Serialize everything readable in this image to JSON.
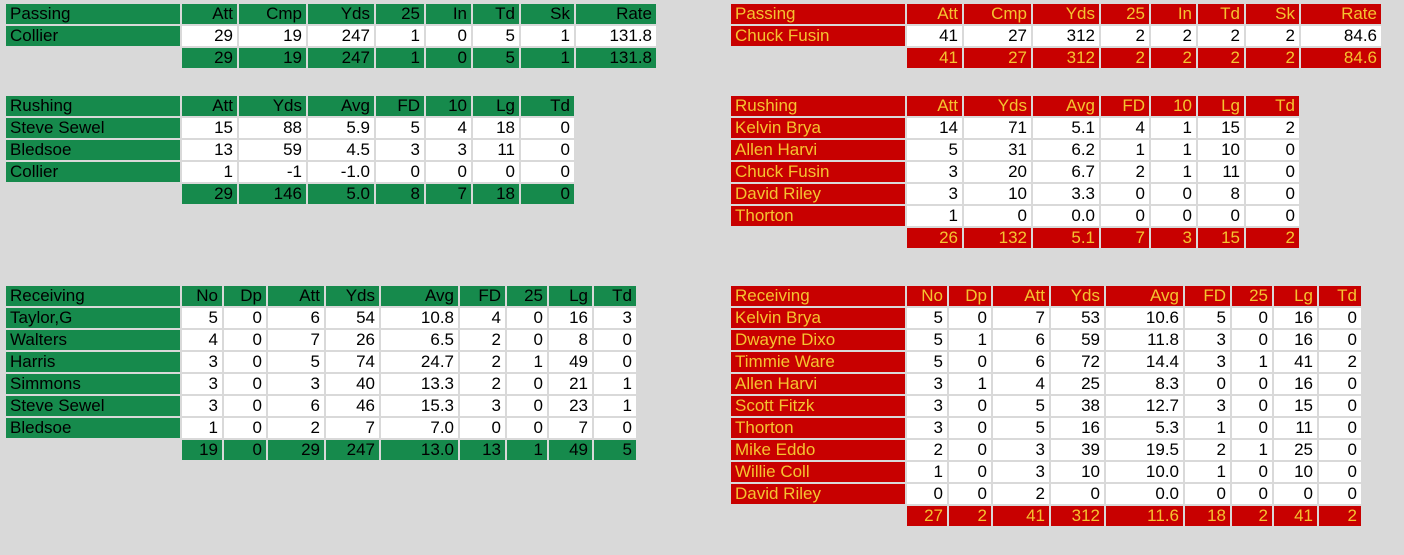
{
  "home": {
    "passing": {
      "title": "Passing",
      "cols": [
        "Att",
        "Cmp",
        "Yds",
        "25",
        "In",
        "Td",
        "Sk",
        "Rate"
      ],
      "rows": [
        {
          "name": "Collier",
          "vals": [
            "29",
            "19",
            "247",
            "1",
            "0",
            "5",
            "1",
            "131.8"
          ]
        }
      ],
      "total": [
        "29",
        "19",
        "247",
        "1",
        "0",
        "5",
        "1",
        "131.8"
      ]
    },
    "rushing": {
      "title": "Rushing",
      "cols": [
        "Att",
        "Yds",
        "Avg",
        "FD",
        "10",
        "Lg",
        "Td"
      ],
      "rows": [
        {
          "name": "Steve Sewel",
          "vals": [
            "15",
            "88",
            "5.9",
            "5",
            "4",
            "18",
            "0"
          ]
        },
        {
          "name": "Bledsoe",
          "vals": [
            "13",
            "59",
            "4.5",
            "3",
            "3",
            "11",
            "0"
          ]
        },
        {
          "name": "Collier",
          "vals": [
            "1",
            "-1",
            "-1.0",
            "0",
            "0",
            "0",
            "0"
          ]
        }
      ],
      "total": [
        "29",
        "146",
        "5.0",
        "8",
        "7",
        "18",
        "0"
      ]
    },
    "receiving": {
      "title": "Receiving",
      "cols": [
        "No",
        "Dp",
        "Att",
        "Yds",
        "Avg",
        "FD",
        "25",
        "Lg",
        "Td"
      ],
      "rows": [
        {
          "name": "Taylor,G",
          "vals": [
            "5",
            "0",
            "6",
            "54",
            "10.8",
            "4",
            "0",
            "16",
            "3"
          ]
        },
        {
          "name": "Walters",
          "vals": [
            "4",
            "0",
            "7",
            "26",
            "6.5",
            "2",
            "0",
            "8",
            "0"
          ]
        },
        {
          "name": "Harris",
          "vals": [
            "3",
            "0",
            "5",
            "74",
            "24.7",
            "2",
            "1",
            "49",
            "0"
          ]
        },
        {
          "name": "Simmons",
          "vals": [
            "3",
            "0",
            "3",
            "40",
            "13.3",
            "2",
            "0",
            "21",
            "1"
          ]
        },
        {
          "name": "Steve Sewel",
          "vals": [
            "3",
            "0",
            "6",
            "46",
            "15.3",
            "3",
            "0",
            "23",
            "1"
          ]
        },
        {
          "name": "Bledsoe",
          "vals": [
            "1",
            "0",
            "2",
            "7",
            "7.0",
            "0",
            "0",
            "7",
            "0"
          ]
        }
      ],
      "total": [
        "19",
        "0",
        "29",
        "247",
        "13.0",
        "13",
        "1",
        "49",
        "5"
      ]
    }
  },
  "away": {
    "passing": {
      "title": "Passing",
      "cols": [
        "Att",
        "Cmp",
        "Yds",
        "25",
        "In",
        "Td",
        "Sk",
        "Rate"
      ],
      "rows": [
        {
          "name": "Chuck Fusin",
          "vals": [
            "41",
            "27",
            "312",
            "2",
            "2",
            "2",
            "2",
            "84.6"
          ]
        }
      ],
      "total": [
        "41",
        "27",
        "312",
        "2",
        "2",
        "2",
        "2",
        "84.6"
      ]
    },
    "rushing": {
      "title": "Rushing",
      "cols": [
        "Att",
        "Yds",
        "Avg",
        "FD",
        "10",
        "Lg",
        "Td"
      ],
      "rows": [
        {
          "name": "Kelvin Brya",
          "vals": [
            "14",
            "71",
            "5.1",
            "4",
            "1",
            "15",
            "2"
          ]
        },
        {
          "name": "Allen Harvi",
          "vals": [
            "5",
            "31",
            "6.2",
            "1",
            "1",
            "10",
            "0"
          ]
        },
        {
          "name": "Chuck Fusin",
          "vals": [
            "3",
            "20",
            "6.7",
            "2",
            "1",
            "11",
            "0"
          ]
        },
        {
          "name": "David Riley",
          "vals": [
            "3",
            "10",
            "3.3",
            "0",
            "0",
            "8",
            "0"
          ]
        },
        {
          "name": "Thorton",
          "vals": [
            "1",
            "0",
            "0.0",
            "0",
            "0",
            "0",
            "0"
          ]
        }
      ],
      "total": [
        "26",
        "132",
        "5.1",
        "7",
        "3",
        "15",
        "2"
      ]
    },
    "receiving": {
      "title": "Receiving",
      "cols": [
        "No",
        "Dp",
        "Att",
        "Yds",
        "Avg",
        "FD",
        "25",
        "Lg",
        "Td"
      ],
      "rows": [
        {
          "name": "Kelvin Brya",
          "vals": [
            "5",
            "0",
            "7",
            "53",
            "10.6",
            "5",
            "0",
            "16",
            "0"
          ]
        },
        {
          "name": "Dwayne Dixo",
          "vals": [
            "5",
            "1",
            "6",
            "59",
            "11.8",
            "3",
            "0",
            "16",
            "0"
          ]
        },
        {
          "name": "Timmie Ware",
          "vals": [
            "5",
            "0",
            "6",
            "72",
            "14.4",
            "3",
            "1",
            "41",
            "2"
          ]
        },
        {
          "name": "Allen Harvi",
          "vals": [
            "3",
            "1",
            "4",
            "25",
            "8.3",
            "0",
            "0",
            "16",
            "0"
          ]
        },
        {
          "name": "Scott Fitzk",
          "vals": [
            "3",
            "0",
            "5",
            "38",
            "12.7",
            "3",
            "0",
            "15",
            "0"
          ]
        },
        {
          "name": "Thorton",
          "vals": [
            "3",
            "0",
            "5",
            "16",
            "5.3",
            "1",
            "0",
            "11",
            "0"
          ]
        },
        {
          "name": "Mike Eddo",
          "vals": [
            "2",
            "0",
            "3",
            "39",
            "19.5",
            "2",
            "1",
            "25",
            "0"
          ]
        },
        {
          "name": "Willie Coll",
          "vals": [
            "1",
            "0",
            "3",
            "10",
            "10.0",
            "1",
            "0",
            "10",
            "0"
          ]
        },
        {
          "name": "David Riley",
          "vals": [
            "0",
            "0",
            "2",
            "0",
            "0.0",
            "0",
            "0",
            "0",
            "0"
          ]
        }
      ],
      "total": [
        "27",
        "2",
        "41",
        "312",
        "11.6",
        "18",
        "2",
        "41",
        "2"
      ]
    }
  }
}
